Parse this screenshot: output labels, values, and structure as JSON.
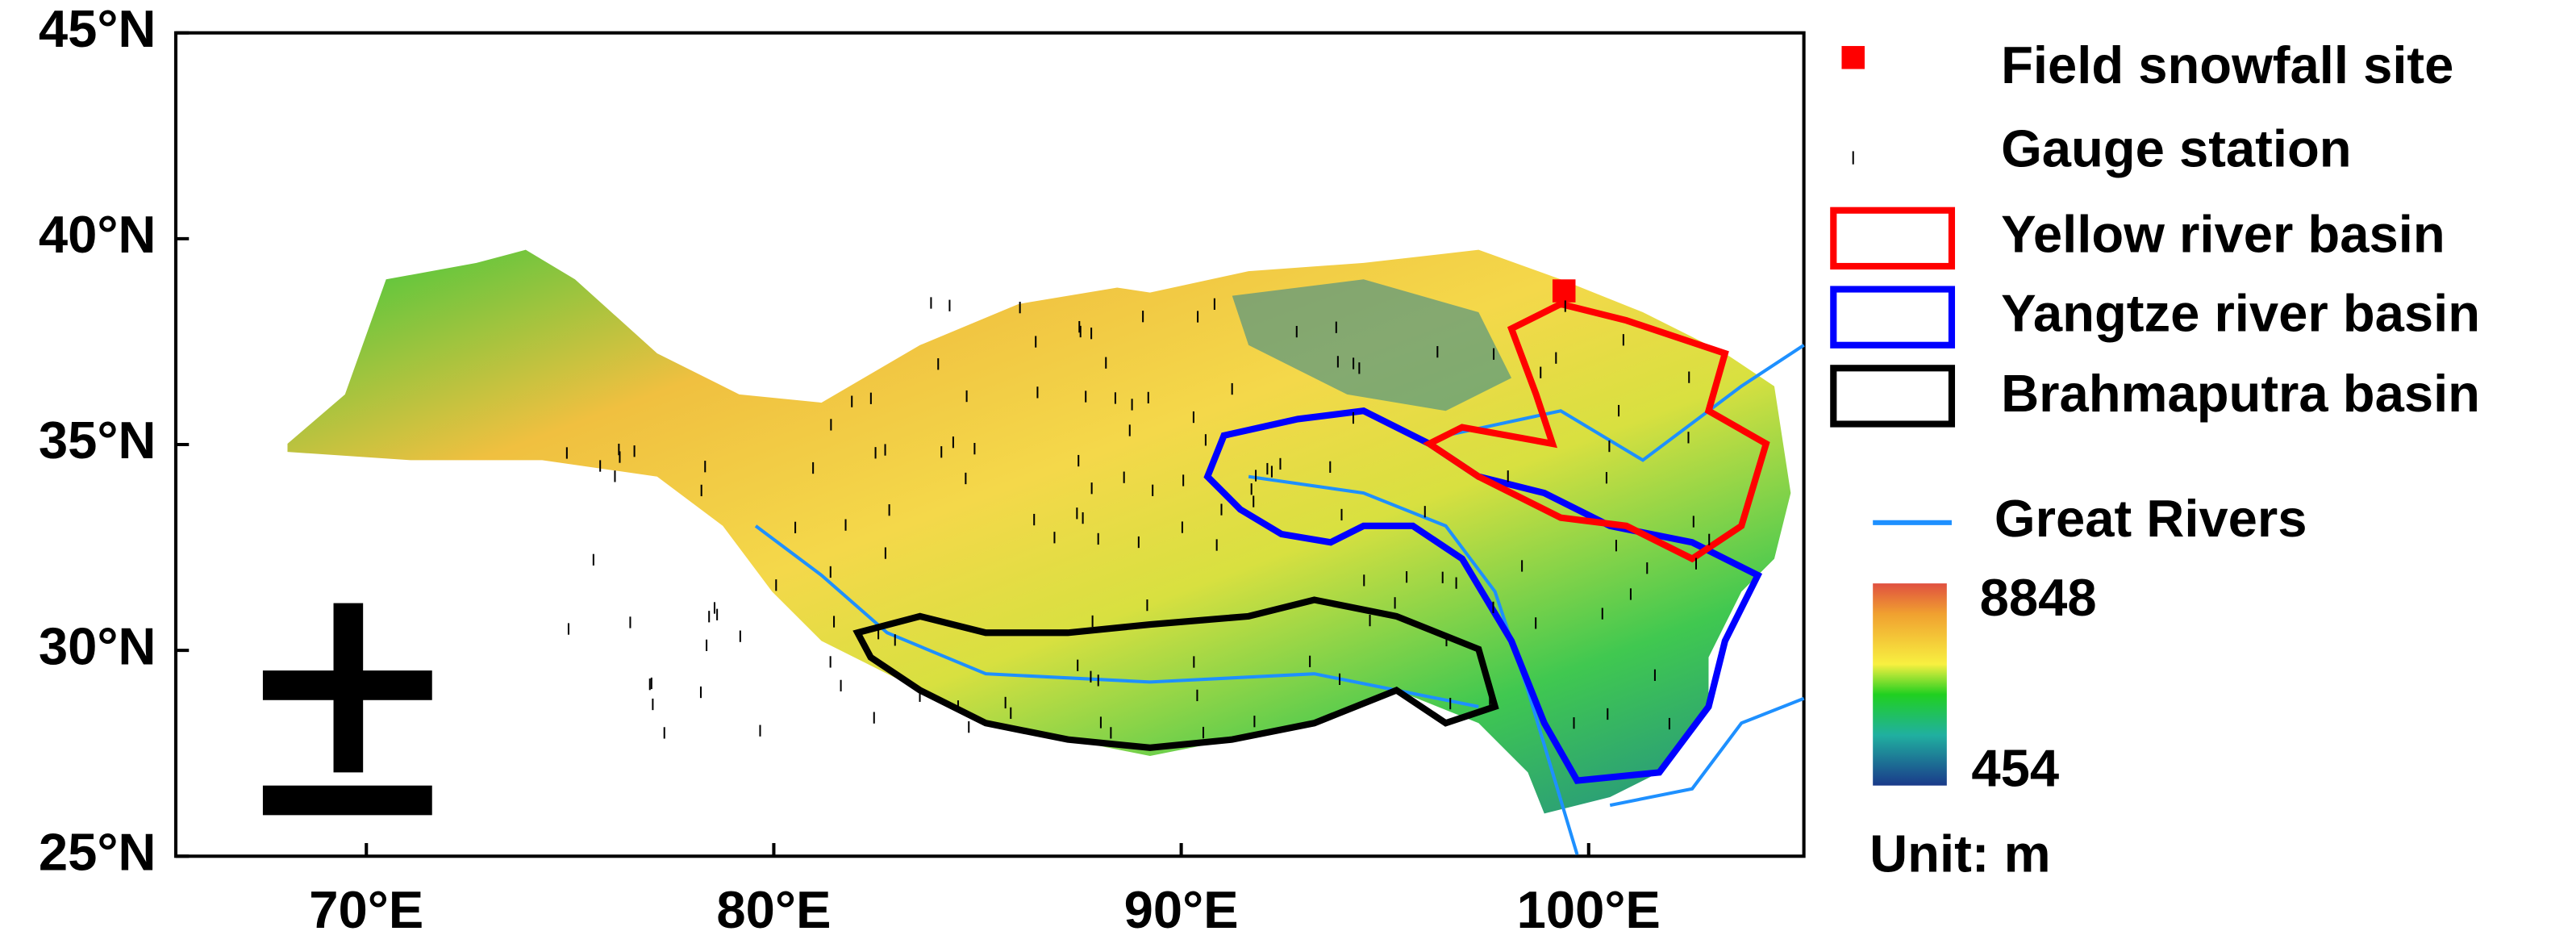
{
  "map": {
    "lat_ticks": [
      {
        "value": 45,
        "label": "45°N"
      },
      {
        "value": 40,
        "label": "40°N"
      },
      {
        "value": 35,
        "label": "35°N"
      },
      {
        "value": 30,
        "label": "30°N"
      },
      {
        "value": 25,
        "label": "25°N"
      }
    ],
    "lon_ticks": [
      {
        "value": 70,
        "label": "70°E"
      },
      {
        "value": 80,
        "label": "80°E"
      },
      {
        "value": 90,
        "label": "90°E"
      },
      {
        "value": 100,
        "label": "100°E"
      }
    ],
    "legend": [
      "Field snowfall site",
      "Gauge station",
      "Yellow river basin",
      "Yangtze river basin",
      "Brahmaputra basin",
      "Great Rivers"
    ],
    "colorbar": {
      "max": 8848,
      "min": 454,
      "unit_label": "Unit: m"
    }
  }
}
